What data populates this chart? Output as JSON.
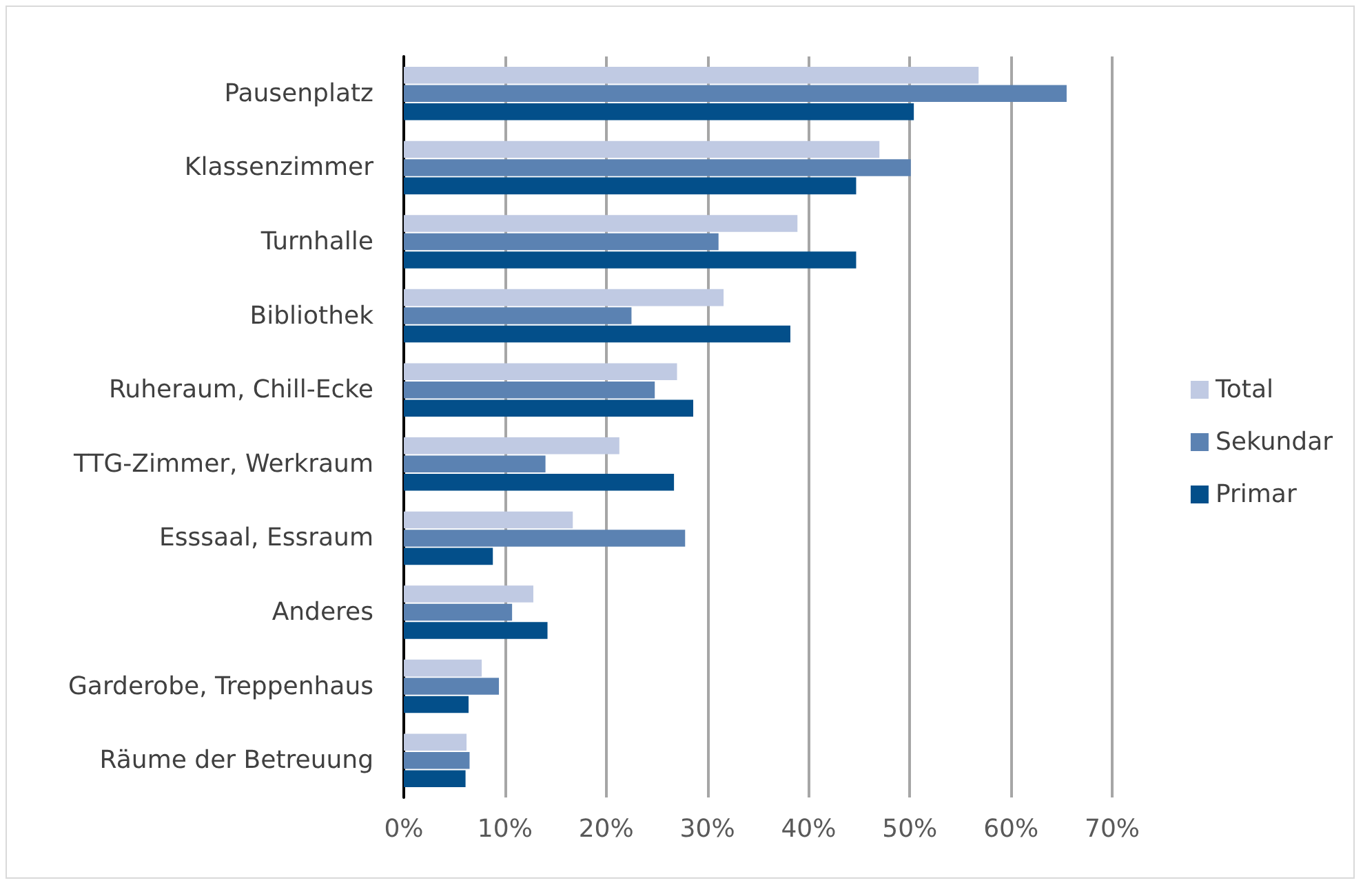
{
  "chart_data": {
    "type": "bar",
    "orientation": "horizontal",
    "categories": [
      "Pausenplatz",
      "Klassenzimmer",
      "Turnhalle",
      "Bibliothek",
      "Ruheraum, Chill-Ecke",
      "TTG-Zimmer, Werkraum",
      "Esssaal, Essraum",
      "Anderes",
      "Garderobe, Treppenhaus",
      "Räume der Betreuung"
    ],
    "series": [
      {
        "name": "Total",
        "color": "#c0cae3",
        "values": [
          56.8,
          47.0,
          38.9,
          31.6,
          27.0,
          21.3,
          16.7,
          12.8,
          7.7,
          6.2
        ]
      },
      {
        "name": "Sekundar",
        "color": "#5b82b2",
        "values": [
          65.5,
          50.1,
          31.1,
          22.5,
          24.8,
          14.0,
          27.8,
          10.7,
          9.4,
          6.5
        ]
      },
      {
        "name": "Primar",
        "color": "#034f8a",
        "values": [
          50.4,
          44.7,
          44.7,
          38.2,
          28.6,
          26.7,
          8.8,
          14.2,
          6.4,
          6.1
        ]
      }
    ],
    "xlim": [
      0,
      70
    ],
    "xticks": [
      {
        "value": 0,
        "label": "0%"
      },
      {
        "value": 10,
        "label": "10%"
      },
      {
        "value": 20,
        "label": "20%"
      },
      {
        "value": 30,
        "label": "30%"
      },
      {
        "value": 40,
        "label": "40%"
      },
      {
        "value": 50,
        "label": "50%"
      },
      {
        "value": 60,
        "label": "60%"
      },
      {
        "value": 70,
        "label": "70%"
      }
    ],
    "grid": "x",
    "legend": "right"
  }
}
